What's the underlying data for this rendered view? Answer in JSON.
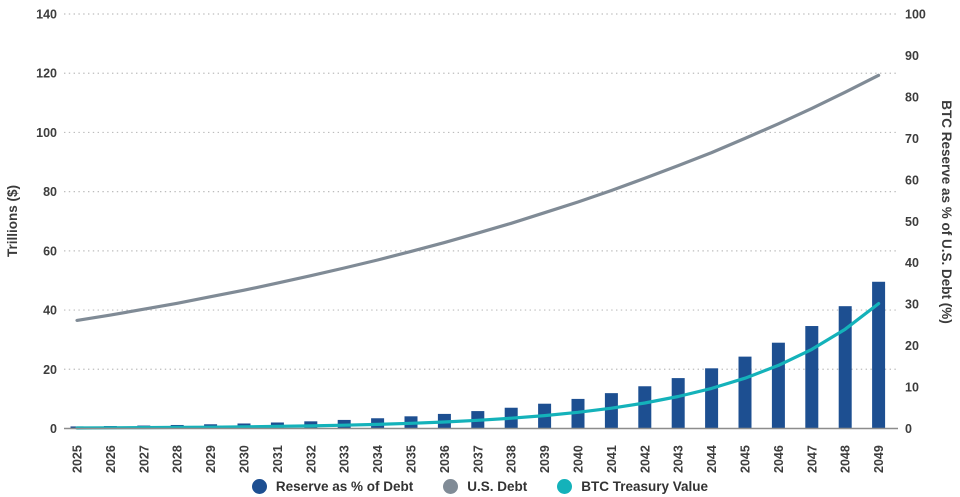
{
  "chart_data": {
    "type": "combo-bar-line",
    "title": "",
    "categories": [
      2025,
      2026,
      2027,
      2028,
      2029,
      2030,
      2031,
      2032,
      2033,
      2034,
      2035,
      2036,
      2037,
      2038,
      2039,
      2040,
      2041,
      2042,
      2043,
      2044,
      2045,
      2046,
      2047,
      2048,
      2049
    ],
    "series": [
      {
        "name": "Reserve as % of Debt",
        "type": "bar",
        "axis": "right",
        "color": "#1d4f91",
        "values": [
          0.5,
          0.6,
          0.71,
          0.85,
          1.02,
          1.21,
          1.45,
          1.73,
          2.07,
          2.47,
          2.94,
          3.52,
          4.2,
          5.01,
          5.98,
          7.14,
          8.53,
          10.19,
          12.16,
          14.52,
          17.34,
          20.7,
          24.72,
          29.51,
          35.4
        ]
      },
      {
        "name": "U.S. Debt",
        "type": "line",
        "axis": "left",
        "color": "#808b96",
        "values": [
          36.5,
          38.3,
          40.3,
          42.3,
          44.5,
          46.7,
          49.1,
          51.6,
          54.2,
          56.9,
          59.8,
          62.8,
          66.0,
          69.3,
          72.9,
          76.5,
          80.4,
          84.5,
          88.8,
          93.2,
          98.0,
          102.9,
          108.1,
          113.6,
          119.3
        ]
      },
      {
        "name": "BTC Treasury Value",
        "type": "line",
        "axis": "left",
        "color": "#14b2ba",
        "values": [
          0.18,
          0.23,
          0.29,
          0.36,
          0.45,
          0.57,
          0.71,
          0.89,
          1.12,
          1.4,
          1.76,
          2.21,
          2.77,
          3.47,
          4.36,
          5.47,
          6.86,
          8.61,
          10.8,
          13.54,
          16.99,
          21.3,
          26.72,
          33.53,
          42.2
        ]
      }
    ],
    "left_axis": {
      "label": "Trillions ($)",
      "min": 0,
      "max": 140,
      "ticks": [
        0,
        20,
        40,
        60,
        80,
        100,
        120,
        140
      ]
    },
    "right_axis": {
      "label": "BTC Reserve as % of U.S. Debt (%)",
      "min": 0,
      "max": 100,
      "ticks": [
        0,
        10,
        20,
        30,
        40,
        50,
        60,
        70,
        80,
        90,
        100
      ]
    },
    "legend": {
      "position": "bottom",
      "items": [
        {
          "label": "Reserve as % of Debt",
          "color": "#1d4f91"
        },
        {
          "label": "U.S. Debt",
          "color": "#808b96"
        },
        {
          "label": "BTC Treasury Value",
          "color": "#14b2ba"
        }
      ]
    },
    "grid": {
      "horizontal": "dotted",
      "vertical": "none"
    }
  }
}
